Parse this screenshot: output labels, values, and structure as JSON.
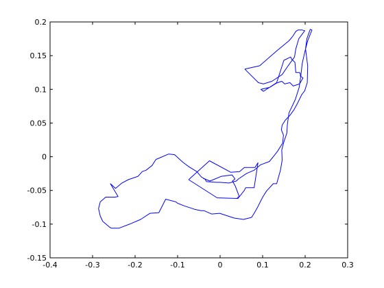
{
  "chart_data": {
    "type": "line",
    "title": "",
    "xlabel": "",
    "ylabel": "",
    "xlim": [
      -0.4,
      0.3
    ],
    "ylim": [
      -0.15,
      0.2
    ],
    "xticks": [
      -0.4,
      -0.3,
      -0.2,
      -0.1,
      0,
      0.1,
      0.2,
      0.3
    ],
    "xtick_labels": [
      "-0.4",
      "-0.3",
      "-0.2",
      "-0.1",
      "0",
      "0.1",
      "0.2",
      "0.3"
    ],
    "yticks": [
      -0.15,
      -0.1,
      -0.05,
      0,
      0.05,
      0.1,
      0.15,
      0.2
    ],
    "ytick_labels": [
      "-0.15",
      "-0.1",
      "-0.05",
      "0",
      "0.05",
      "0.1",
      "0.15",
      "0.2"
    ],
    "grid": false,
    "line_color": "#0000ff",
    "series": [
      {
        "x": [
          -0.256,
          -0.238,
          -0.213,
          -0.187,
          -0.165,
          -0.144,
          -0.128,
          -0.104,
          -0.1,
          -0.084,
          -0.06,
          -0.045,
          -0.038,
          -0.02,
          -0.001,
          0.033,
          0.055,
          0.074,
          0.081,
          0.088,
          0.096,
          0.101,
          0.109,
          0.125,
          0.133,
          0.142,
          0.146,
          0.145,
          0.15,
          0.157,
          0.158,
          0.162,
          0.177,
          0.186,
          0.19,
          0.193,
          0.199,
          0.206,
          0.216,
          0.212,
          0.204,
          0.201,
          0.206,
          0.205,
          0.199,
          0.192,
          0.181,
          0.174,
          0.165,
          0.153,
          0.146,
          0.144,
          0.149,
          0.147,
          0.135,
          0.125,
          0.116,
          0.095,
          0.08,
          0.062,
          0.043,
          0.038,
          0.021,
          -0.001,
          -0.009,
          -0.032,
          -0.036,
          -0.044,
          -0.055,
          -0.073,
          -0.088,
          -0.107,
          -0.121,
          -0.143,
          -0.151,
          -0.16,
          -0.174,
          -0.183,
          -0.193,
          -0.216,
          -0.231,
          -0.246,
          -0.258,
          -0.24,
          -0.247,
          -0.269,
          -0.282,
          -0.286,
          -0.282,
          -0.276,
          -0.261,
          -0.256
        ],
        "y": [
          -0.106,
          -0.106,
          -0.1,
          -0.093,
          -0.084,
          -0.083,
          -0.063,
          -0.067,
          -0.069,
          -0.073,
          -0.078,
          -0.08,
          -0.08,
          -0.085,
          -0.084,
          -0.091,
          -0.093,
          -0.09,
          -0.083,
          -0.075,
          -0.065,
          -0.059,
          -0.051,
          -0.04,
          -0.04,
          -0.02,
          -0.005,
          0.01,
          0.022,
          0.035,
          0.047,
          0.065,
          0.085,
          0.103,
          0.121,
          0.138,
          0.155,
          0.172,
          0.188,
          0.189,
          0.175,
          0.16,
          0.135,
          0.11,
          0.098,
          0.092,
          0.078,
          0.07,
          0.062,
          0.054,
          0.047,
          0.04,
          0.032,
          0.02,
          0.008,
          0.0,
          -0.007,
          -0.012,
          -0.02,
          -0.025,
          -0.033,
          -0.036,
          -0.039,
          -0.038,
          -0.038,
          -0.037,
          -0.033,
          -0.03,
          -0.022,
          -0.015,
          -0.008,
          0.003,
          0.004,
          -0.002,
          -0.004,
          -0.013,
          -0.02,
          -0.022,
          -0.029,
          -0.034,
          -0.039,
          -0.047,
          -0.04,
          -0.059,
          -0.06,
          -0.06,
          -0.067,
          -0.077,
          -0.088,
          -0.096,
          -0.104,
          -0.106
        ]
      },
      {
        "x": [
          0.058,
          0.093,
          0.133,
          0.162,
          0.17,
          0.178,
          0.183,
          0.193,
          0.199,
          0.185,
          0.178,
          0.175,
          0.16,
          0.146,
          0.122,
          0.102,
          0.09,
          0.058
        ],
        "y": [
          0.13,
          0.135,
          0.157,
          0.172,
          0.178,
          0.186,
          0.188,
          0.188,
          0.187,
          0.175,
          0.16,
          0.148,
          0.135,
          0.122,
          0.112,
          0.108,
          0.11,
          0.13
        ]
      },
      {
        "x": [
          0.102,
          0.133,
          0.15,
          0.166,
          0.168,
          0.176,
          0.178,
          0.187,
          0.19,
          0.188,
          0.195,
          0.187,
          0.172,
          0.164,
          0.152,
          0.145,
          0.132,
          0.117,
          0.096,
          0.102
        ],
        "y": [
          0.097,
          0.11,
          0.143,
          0.148,
          0.145,
          0.14,
          0.125,
          0.125,
          0.12,
          0.12,
          0.117,
          0.108,
          0.105,
          0.11,
          0.108,
          0.112,
          0.109,
          0.103,
          0.1,
          0.097
        ]
      },
      {
        "x": [
          -0.074,
          -0.025,
          0.025,
          0.046,
          0.057,
          0.065,
          0.082,
          0.089,
          0.08,
          0.06,
          0.057,
          0.042,
          -0.007,
          -0.074
        ],
        "y": [
          -0.034,
          -0.006,
          -0.023,
          -0.022,
          -0.016,
          -0.016,
          -0.016,
          -0.009,
          -0.046,
          -0.046,
          -0.05,
          -0.062,
          -0.061,
          -0.034
        ]
      },
      {
        "x": [
          -0.04,
          -0.024,
          -0.012,
          0.003,
          0.028,
          0.035,
          0.029,
          0.036,
          0.045,
          0.04
        ],
        "y": [
          -0.032,
          -0.036,
          -0.033,
          -0.029,
          -0.027,
          -0.033,
          -0.036,
          -0.044,
          -0.059,
          -0.061
        ]
      }
    ]
  }
}
